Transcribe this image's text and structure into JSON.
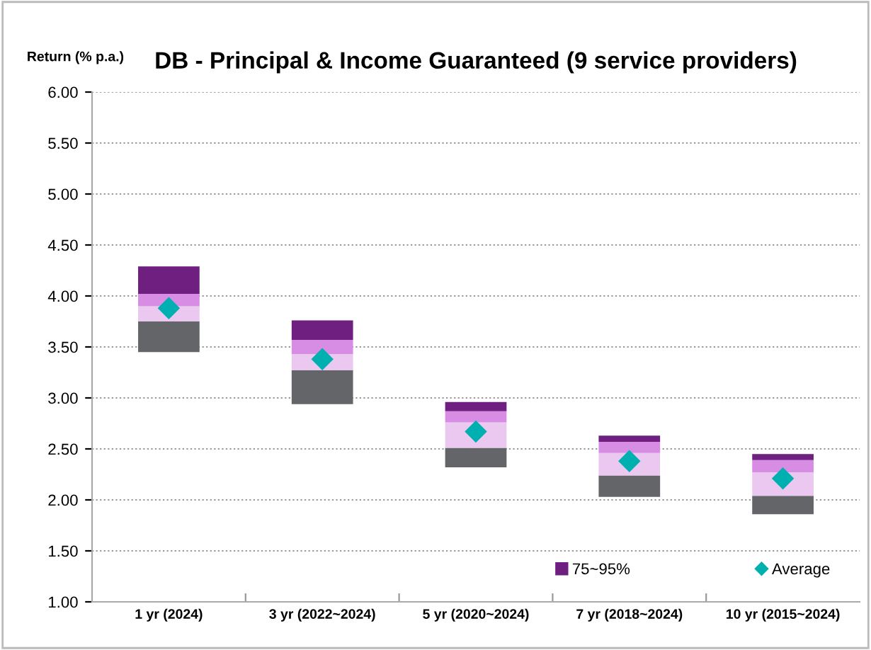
{
  "chart_data": {
    "type": "bar",
    "title": "DB - Principal & Income Guaranteed (9 service providers)",
    "ylabel": "Return (% p.a.)",
    "categories": [
      "1 yr (2024)",
      "3 yr (2022~2024)",
      "5 yr (2020~2024)",
      "7 yr (2018~2024)",
      "10 yr (2015~2024)"
    ],
    "series": [
      {
        "color": "#636569",
        "base": [
          3.45,
          2.94,
          2.32,
          2.03,
          1.86
        ],
        "values": [
          0.3,
          0.33,
          0.19,
          0.21,
          0.18
        ]
      },
      {
        "color": "#ebc8ef",
        "base": [
          3.75,
          3.27,
          2.51,
          2.24,
          2.04
        ],
        "values": [
          0.15,
          0.16,
          0.25,
          0.22,
          0.23
        ]
      },
      {
        "color": "#d68de3",
        "base": [
          3.9,
          3.43,
          2.76,
          2.46,
          2.27
        ],
        "values": [
          0.12,
          0.14,
          0.11,
          0.11,
          0.12
        ]
      },
      {
        "name": "75~95%",
        "color": "#6e1f7f",
        "base": [
          4.02,
          3.57,
          2.87,
          2.57,
          2.39
        ],
        "values": [
          0.27,
          0.19,
          0.09,
          0.06,
          0.06
        ]
      },
      {
        "name": "Average",
        "type": "scatter",
        "marker": "diamond",
        "color": "#00b0b0",
        "values": [
          3.88,
          3.38,
          2.67,
          2.38,
          2.21
        ]
      }
    ],
    "ylim": [
      1.0,
      6.0
    ],
    "yticks": [
      {
        "value": 1.0,
        "label": "1.00"
      },
      {
        "value": 1.5,
        "label": "1.50"
      },
      {
        "value": 2.0,
        "label": "2.00"
      },
      {
        "value": 2.5,
        "label": "2.50"
      },
      {
        "value": 3.0,
        "label": "3.00"
      },
      {
        "value": 3.5,
        "label": "3.50"
      },
      {
        "value": 4.0,
        "label": "4.00"
      },
      {
        "value": 4.5,
        "label": "4.50"
      },
      {
        "value": 5.0,
        "label": "5.00"
      },
      {
        "value": 5.5,
        "label": "5.50"
      },
      {
        "value": 6.0,
        "label": "6.00"
      }
    ],
    "grid": "y",
    "legend": "bottom right"
  }
}
